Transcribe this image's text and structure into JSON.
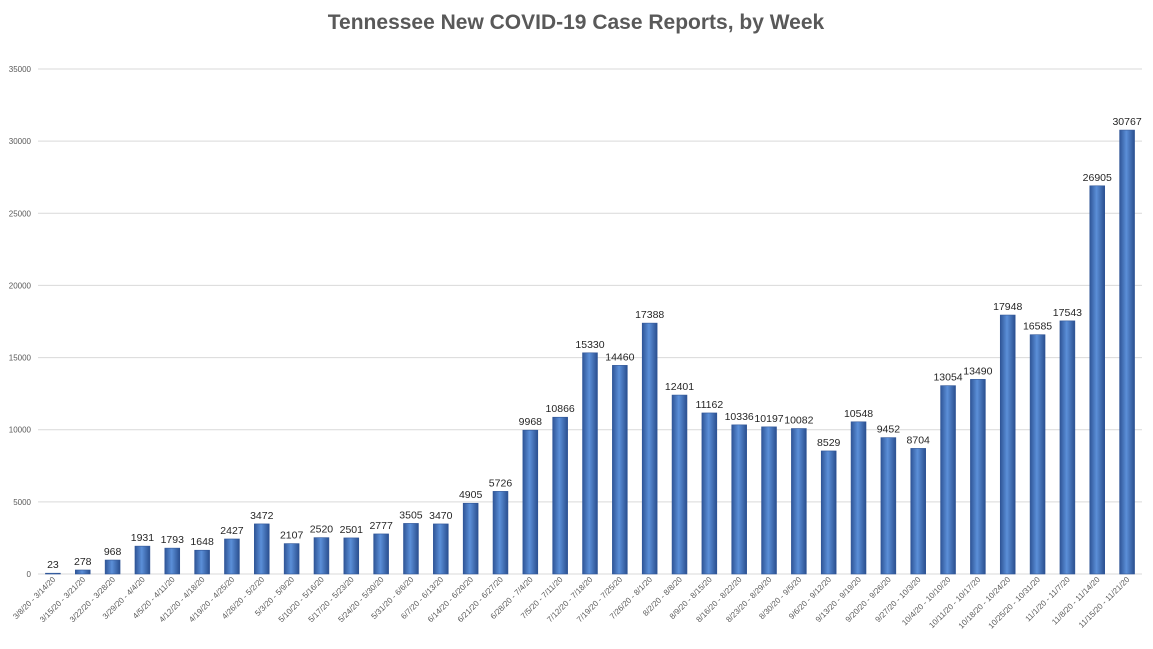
{
  "chart_data": {
    "type": "bar",
    "title": "Tennessee New COVID-19 Case Reports, by Week",
    "xlabel": "",
    "ylabel": "",
    "ylim": [
      0,
      35000
    ],
    "yticks": [
      0,
      5000,
      10000,
      15000,
      20000,
      25000,
      30000,
      35000
    ],
    "grid": true,
    "bar_color": "#4472c4",
    "categories": [
      "3/8/20 - 3/14/20",
      "3/15/20 - 3/21/20",
      "3/22/20 - 3/28/20",
      "3/29/20 - 4/4/20",
      "4/5/20 - 4/11/20",
      "4/12/20 - 4/18/20",
      "4/19/20 - 4/25/20",
      "4/26/20 - 5/2/20",
      "5/3/20 - 5/9/20",
      "5/10/20 - 5/16/20",
      "5/17/20 - 5/23/20",
      "5/24/20 - 5/30/20",
      "5/31/20 - 6/6/20",
      "6/7/20 - 6/13/20",
      "6/14/20 - 6/20/20",
      "6/21/20 - 6/27/20",
      "6/28/20 - 7/4/20",
      "7/5/20 - 7/11/20",
      "7/12/20 - 7/18/20",
      "7/19/20 - 7/25/20",
      "7/26/20 - 8/1/20",
      "8/2/20 - 8/8/20",
      "8/9/20 - 8/15/20",
      "8/16/20 - 8/22/20",
      "8/23/20 - 8/29/20",
      "8/30/20 - 9/5/20",
      "9/6/20 - 9/12/20",
      "9/13/20 - 9/19/20",
      "9/20/20 - 9/26/20",
      "9/27/20 - 10/3/20",
      "10/4/20 - 10/10/20",
      "10/11/20 - 10/17/20",
      "10/18/20 - 10/24/20",
      "10/25/20 - 10/31/20",
      "11/1/20 - 11/7/20",
      "11/8/20 - 11/14/20",
      "11/15/20 - 11/21/20"
    ],
    "values": [
      23,
      278,
      968,
      1931,
      1793,
      1648,
      2427,
      3472,
      2107,
      2520,
      2501,
      2777,
      3505,
      3470,
      4905,
      5726,
      9968,
      10866,
      15330,
      14460,
      17388,
      12401,
      11162,
      10336,
      10197,
      10082,
      8529,
      10548,
      9452,
      8704,
      13054,
      13490,
      17948,
      16585,
      17543,
      26905,
      30767
    ]
  }
}
